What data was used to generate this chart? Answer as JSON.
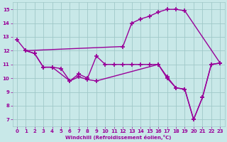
{
  "bg_color": "#c8e8e8",
  "grid_color": "#a0c8c8",
  "line_color": "#990099",
  "line_width": 1.0,
  "marker": "+",
  "marker_size": 4,
  "marker_edge_width": 1.2,
  "xlabel": "Windchill (Refroidissement éolien,°C)",
  "xlabel_color": "#990099",
  "tick_color": "#990099",
  "tick_labelsize": 5.0,
  "xlabel_fontsize": 5.0,
  "xlim": [
    -0.5,
    23.5
  ],
  "ylim": [
    6.5,
    15.5
  ],
  "xticks": [
    0,
    1,
    2,
    3,
    4,
    5,
    6,
    7,
    8,
    9,
    10,
    11,
    12,
    13,
    14,
    15,
    16,
    17,
    18,
    19,
    20,
    21,
    22,
    23
  ],
  "yticks": [
    7,
    8,
    9,
    10,
    11,
    12,
    13,
    14,
    15
  ],
  "line_A_x": [
    0,
    1,
    12,
    13,
    14,
    15,
    16,
    17,
    18,
    19,
    23
  ],
  "line_A_y": [
    12.8,
    12.0,
    12.3,
    14.0,
    14.3,
    14.5,
    14.8,
    15.0,
    15.0,
    14.9,
    11.1
  ],
  "line_B_x": [
    1,
    2,
    3,
    4,
    6,
    7,
    8,
    9,
    16,
    17,
    18,
    19,
    20,
    21,
    22,
    23
  ],
  "line_B_y": [
    12.0,
    11.8,
    10.8,
    10.8,
    9.8,
    10.1,
    9.9,
    9.8,
    11.0,
    10.1,
    9.3,
    9.2,
    7.0,
    8.6,
    11.0,
    11.1
  ],
  "line_C_x": [
    1,
    2,
    3,
    4,
    5,
    6,
    7,
    8,
    9,
    10,
    11,
    12,
    13,
    14,
    15,
    16,
    17,
    18,
    19,
    20,
    21,
    22,
    23
  ],
  "line_C_y": [
    12.0,
    11.8,
    10.8,
    10.8,
    10.7,
    9.8,
    10.3,
    10.0,
    11.6,
    11.0,
    11.0,
    11.0,
    11.0,
    11.0,
    11.0,
    11.0,
    10.0,
    9.3,
    9.2,
    7.0,
    8.6,
    11.0,
    11.1
  ]
}
